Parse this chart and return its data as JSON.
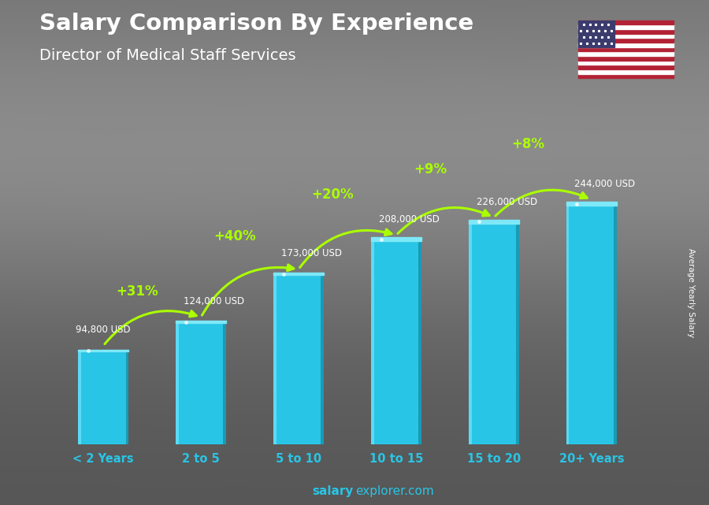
{
  "title": "Salary Comparison By Experience",
  "subtitle": "Director of Medical Staff Services",
  "ylabel": "Average Yearly Salary",
  "footer_bold": "salary",
  "footer_normal": "explorer.com",
  "categories": [
    "< 2 Years",
    "2 to 5",
    "5 to 10",
    "10 to 15",
    "15 to 20",
    "20+ Years"
  ],
  "values": [
    94800,
    124000,
    173000,
    208000,
    226000,
    244000
  ],
  "labels": [
    "94,800 USD",
    "124,000 USD",
    "173,000 USD",
    "208,000 USD",
    "226,000 USD",
    "244,000 USD"
  ],
  "pct_changes": [
    "+31%",
    "+40%",
    "+20%",
    "+9%",
    "+8%"
  ],
  "bar_face_color": "#29c5e6",
  "bar_left_color": "#5cdaf5",
  "bar_right_color": "#1a9ab5",
  "bar_top_color": "#7ee8f8",
  "pct_color": "#aaff00",
  "label_color": "#ffffff",
  "title_color": "#ffffff",
  "subtitle_color": "#ffffff",
  "xtick_color": "#29c5e6",
  "bg_color": "#5a6060",
  "footer_color": "#29c5e6",
  "ylim": [
    0,
    310000
  ],
  "bar_width": 0.52
}
